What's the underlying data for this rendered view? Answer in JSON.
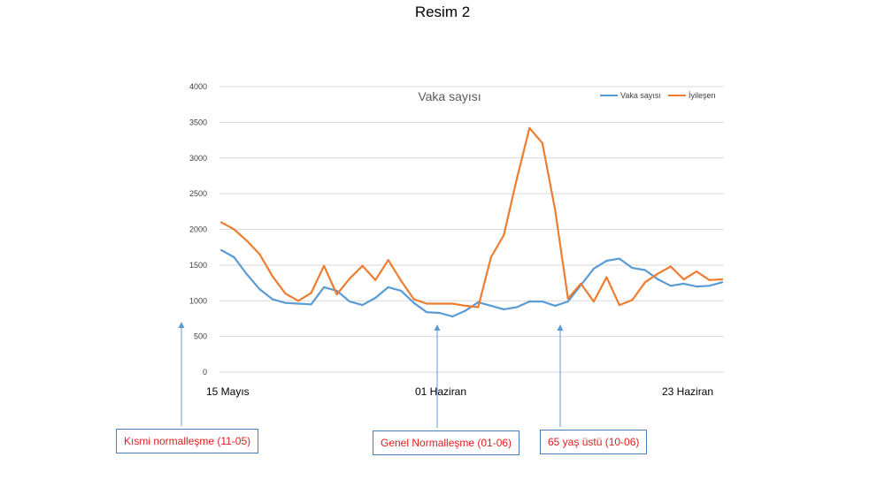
{
  "page": {
    "title": "Resim 2"
  },
  "chart_data": {
    "type": "line",
    "title": "Vaka sayısı",
    "xlabel": "",
    "ylabel": "",
    "ylim": [
      0,
      4000
    ],
    "yticks": [
      0,
      500,
      1000,
      1500,
      2000,
      2500,
      3000,
      3500,
      4000
    ],
    "grid": true,
    "legend": "top-right",
    "x_tick_labels": [
      {
        "label": "15 Mayıs",
        "index": 0
      },
      {
        "label": "01 Haziran",
        "index": 15
      },
      {
        "label": "23 Haziran",
        "index": 31
      }
    ],
    "series": [
      {
        "name": "Vaka sayısı",
        "color": "#5b9bd5",
        "values": [
          1710,
          1610,
          1370,
          1160,
          1020,
          970,
          960,
          950,
          1190,
          1140,
          990,
          940,
          1040,
          1190,
          1140,
          970,
          840,
          830,
          780,
          860,
          980,
          930,
          880,
          910,
          990,
          990,
          930,
          990,
          1220,
          1450,
          1560,
          1590,
          1460,
          1430,
          1300,
          1210,
          1240,
          1200,
          1210,
          1260
        ]
      },
      {
        "name": "İyileşen",
        "color": "#ed7d31",
        "values": [
          2100,
          2000,
          1840,
          1650,
          1340,
          1100,
          1000,
          1110,
          1490,
          1090,
          1310,
          1490,
          1290,
          1570,
          1280,
          1020,
          960,
          960,
          960,
          930,
          910,
          1610,
          1920,
          2700,
          3420,
          3210,
          2270,
          1030,
          1240,
          990,
          1330,
          940,
          1010,
          1260,
          1380,
          1480,
          1300,
          1410,
          1290,
          1300
        ]
      }
    ]
  },
  "annotations": [
    {
      "label": "Kısmi normalleşme (11-05)"
    },
    {
      "label": "Genel Normalleşme (01-06)"
    },
    {
      "label": "65 yaş üstü (10-06)"
    }
  ]
}
